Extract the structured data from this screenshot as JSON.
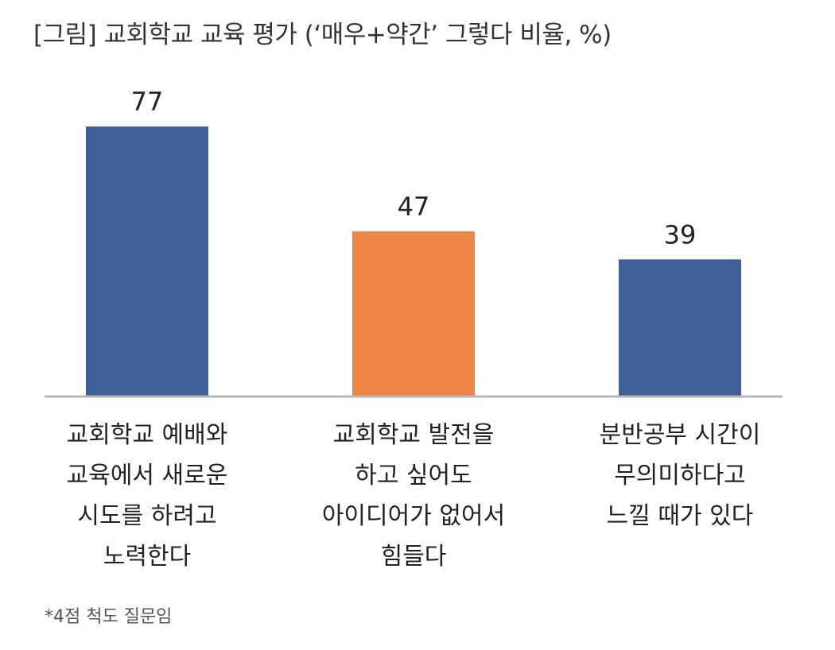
{
  "title": "[그림] 교회학교 교육 평가 (‘매우+약간’ 그렇다 비율, %)",
  "footnote": "*4점 척도 질문임",
  "colors": {
    "primary": "#3e5f98",
    "highlight": "#ef8447",
    "axis": "#b5b5b5",
    "text": "#222222"
  },
  "chart_data": {
    "type": "bar",
    "title": "[그림] 교회학교 교육 평가 (‘매우+약간’ 그렇다 비율, %)",
    "categories": [
      [
        "교회학교 예배와",
        "교육에서 새로운",
        "시도를 하려고",
        "노력한다"
      ],
      [
        "교회학교 발전을",
        "하고 싶어도",
        "아이디어가 없어서",
        "힘들다"
      ],
      [
        "분반공부 시간이",
        "무의미하다고",
        "느낄 때가 있다"
      ]
    ],
    "values": [
      77,
      47,
      39
    ],
    "bar_colors": [
      "#3e5f98",
      "#ef8447",
      "#3e5f98"
    ],
    "ylim": [
      0,
      80
    ],
    "grid": false,
    "legend": "none"
  }
}
